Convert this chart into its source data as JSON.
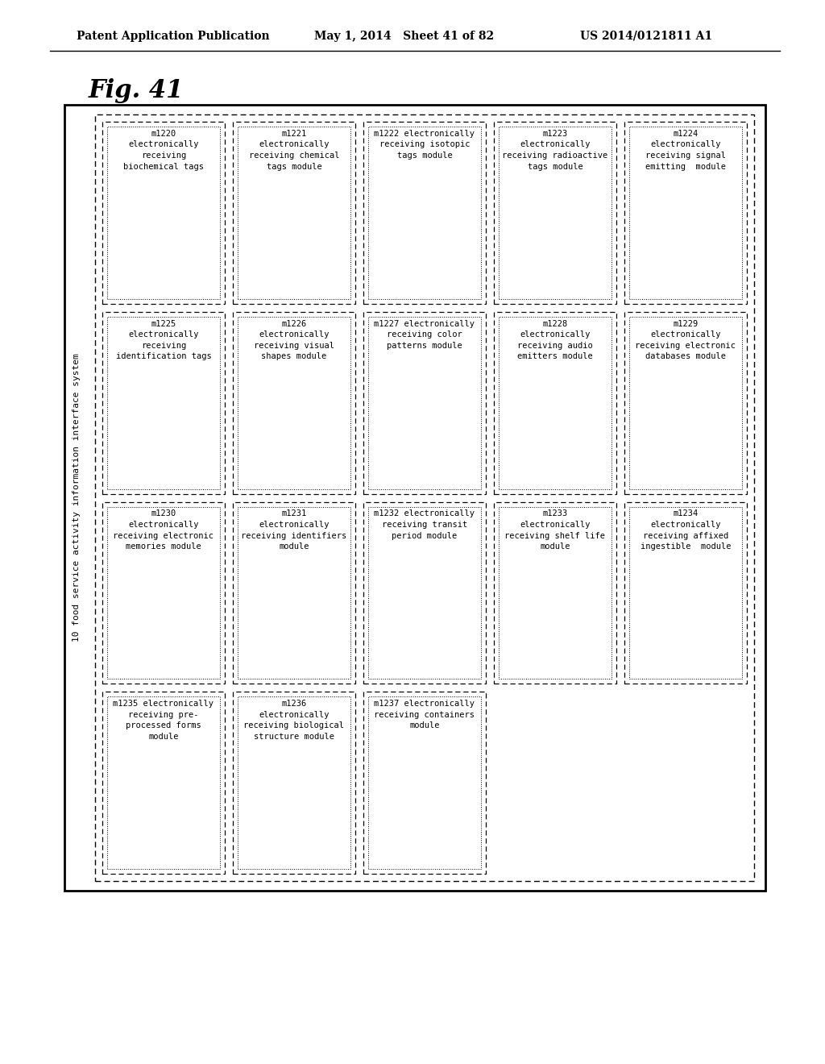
{
  "header_left": "Patent Application Publication",
  "header_mid": "May 1, 2014   Sheet 41 of 82",
  "header_right": "US 2014/0121811 A1",
  "fig_label": "Fig. 41",
  "outer_label": "10 food service activity information interface system",
  "cells": [
    {
      "id": "m1220",
      "row": 0,
      "col": 0,
      "lines": [
        "m1220",
        "electronically",
        "receiving",
        "biochemical tags"
      ]
    },
    {
      "id": "m1221",
      "row": 0,
      "col": 1,
      "lines": [
        "m1221",
        "electronically",
        "receiving chemical",
        "tags module"
      ]
    },
    {
      "id": "m1222",
      "row": 0,
      "col": 2,
      "lines": [
        "m1222 electronically",
        "receiving isotopic",
        "tags module"
      ]
    },
    {
      "id": "m1223",
      "row": 0,
      "col": 3,
      "lines": [
        "m1223",
        "electronically",
        "receiving radioactive",
        "tags module"
      ]
    },
    {
      "id": "m1224",
      "row": 0,
      "col": 4,
      "lines": [
        "m1224",
        "electronically",
        "receiving signal",
        "emitting  module"
      ]
    },
    {
      "id": "m1225",
      "row": 1,
      "col": 0,
      "lines": [
        "m1225",
        "electronically",
        "receiving",
        "identification tags"
      ]
    },
    {
      "id": "m1226",
      "row": 1,
      "col": 1,
      "lines": [
        "m1226",
        "electronically",
        "receiving visual",
        "shapes module"
      ]
    },
    {
      "id": "m1227",
      "row": 1,
      "col": 2,
      "lines": [
        "m1227 electronically",
        "receiving color",
        "patterns module"
      ]
    },
    {
      "id": "m1228",
      "row": 1,
      "col": 3,
      "lines": [
        "m1228",
        "electronically",
        "receiving audio",
        "emitters module"
      ]
    },
    {
      "id": "m1229",
      "row": 1,
      "col": 4,
      "lines": [
        "m1229",
        "electronically",
        "receiving electronic",
        "databases module"
      ]
    },
    {
      "id": "m1230",
      "row": 2,
      "col": 0,
      "lines": [
        "m1230",
        "electronically",
        "receiving electronic",
        "memories module"
      ]
    },
    {
      "id": "m1231",
      "row": 2,
      "col": 1,
      "lines": [
        "m1231",
        "electronically",
        "receiving identifiers",
        "module"
      ]
    },
    {
      "id": "m1232",
      "row": 2,
      "col": 2,
      "lines": [
        "m1232 electronically",
        "receiving transit",
        "period module"
      ]
    },
    {
      "id": "m1233",
      "row": 2,
      "col": 3,
      "lines": [
        "m1233",
        "electronically",
        "receiving shelf life",
        "module"
      ]
    },
    {
      "id": "m1234",
      "row": 2,
      "col": 4,
      "lines": [
        "m1234",
        "electronically",
        "receiving affixed",
        "ingestible  module"
      ]
    },
    {
      "id": "m1235",
      "row": 3,
      "col": 0,
      "lines": [
        "m1235 electronically",
        "receiving pre-",
        "processed forms",
        "module"
      ]
    },
    {
      "id": "m1236",
      "row": 3,
      "col": 1,
      "lines": [
        "m1236",
        "electronically",
        "receiving biological",
        "structure module"
      ]
    },
    {
      "id": "m1237",
      "row": 3,
      "col": 2,
      "lines": [
        "m1237 electronically",
        "receiving containers",
        "module"
      ]
    }
  ],
  "bg_color": "#ffffff",
  "text_color": "#000000",
  "header_fontsize": 10,
  "fig_fontsize": 22,
  "cell_fontsize": 7.5,
  "outer_label_fontsize": 8.0
}
